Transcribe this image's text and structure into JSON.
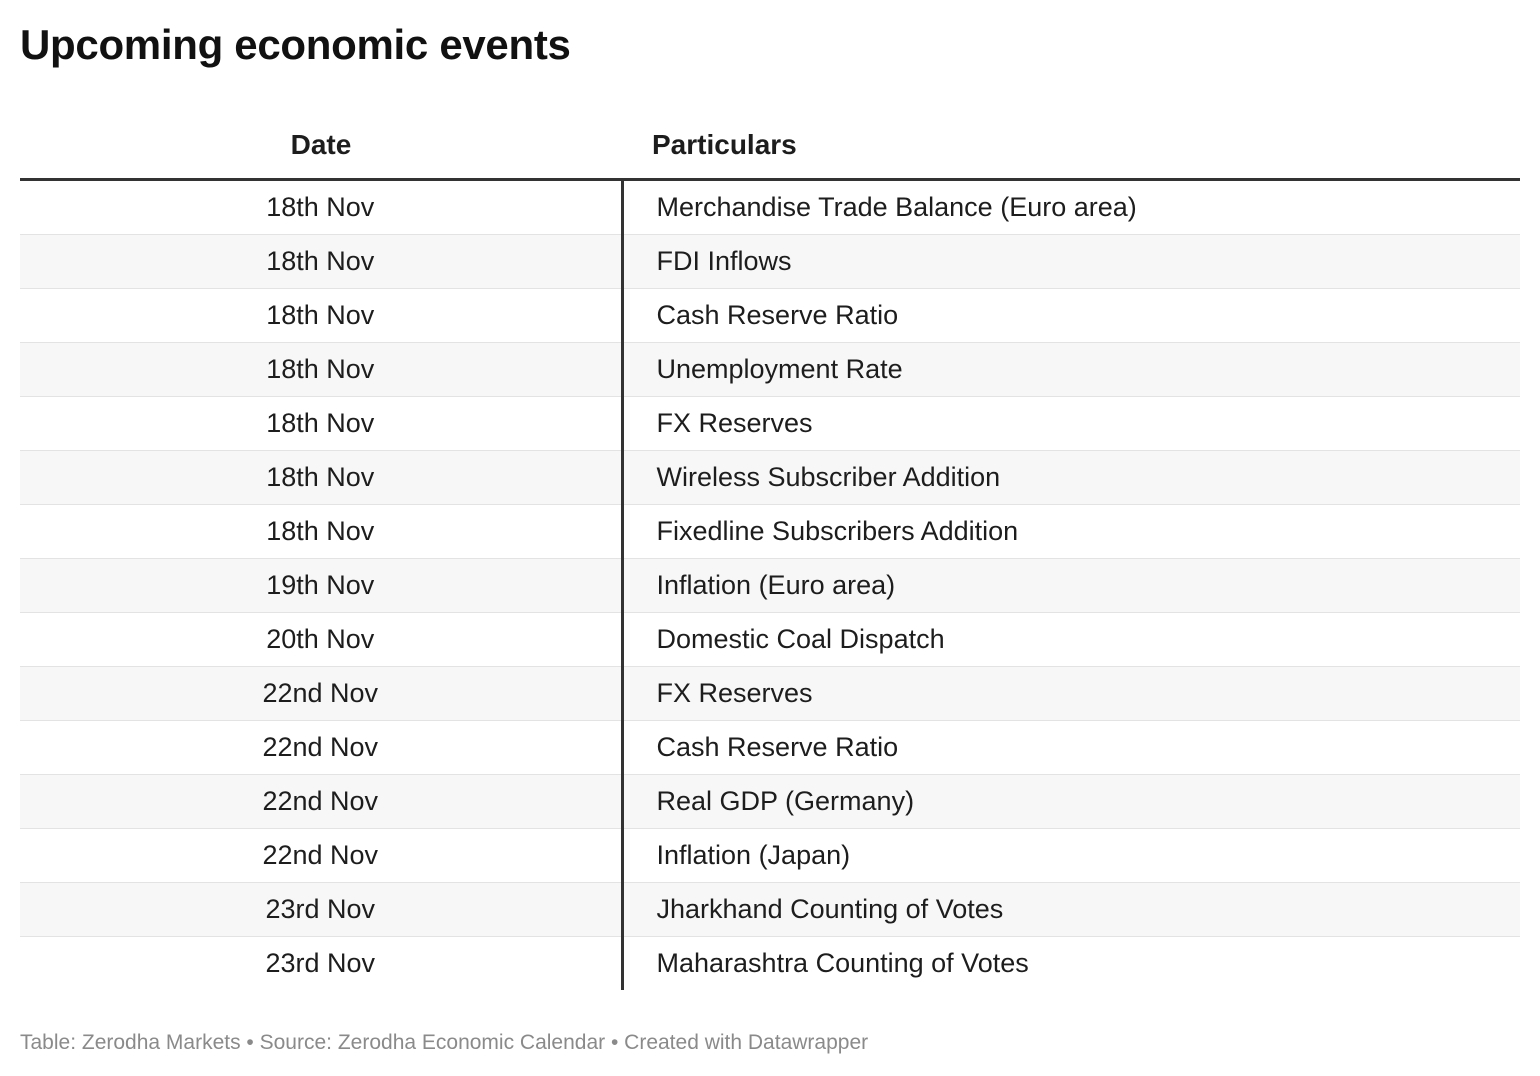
{
  "title": "Upcoming economic events",
  "table": {
    "headers": {
      "date": "Date",
      "particulars": "Particulars"
    },
    "rows": [
      {
        "date": "18th Nov",
        "particulars": "Merchandise Trade Balance (Euro area)"
      },
      {
        "date": "18th Nov",
        "particulars": "FDI Inflows"
      },
      {
        "date": "18th Nov",
        "particulars": "Cash Reserve Ratio"
      },
      {
        "date": "18th Nov",
        "particulars": "Unemployment Rate"
      },
      {
        "date": "18th Nov",
        "particulars": "FX Reserves"
      },
      {
        "date": "18th Nov",
        "particulars": "Wireless Subscriber Addition"
      },
      {
        "date": "18th Nov",
        "particulars": "Fixedline Subscribers Addition"
      },
      {
        "date": "19th Nov",
        "particulars": "Inflation (Euro area)"
      },
      {
        "date": "20th Nov",
        "particulars": "Domestic Coal Dispatch"
      },
      {
        "date": "22nd Nov",
        "particulars": "FX Reserves"
      },
      {
        "date": "22nd Nov",
        "particulars": "Cash Reserve Ratio"
      },
      {
        "date": "22nd Nov",
        "particulars": "Real GDP (Germany)"
      },
      {
        "date": "22nd Nov",
        "particulars": "Inflation (Japan)"
      },
      {
        "date": "23rd Nov",
        "particulars": "Jharkhand Counting of Votes"
      },
      {
        "date": "23rd Nov",
        "particulars": "Maharashtra Counting of Votes"
      }
    ]
  },
  "footer": "Table: Zerodha Markets • Source: Zerodha Economic Calendar • Created with Datawrapper",
  "colors": {
    "stripe": "#f7f7f7",
    "rule": "#333333",
    "footer_text": "#8a8a8a"
  }
}
